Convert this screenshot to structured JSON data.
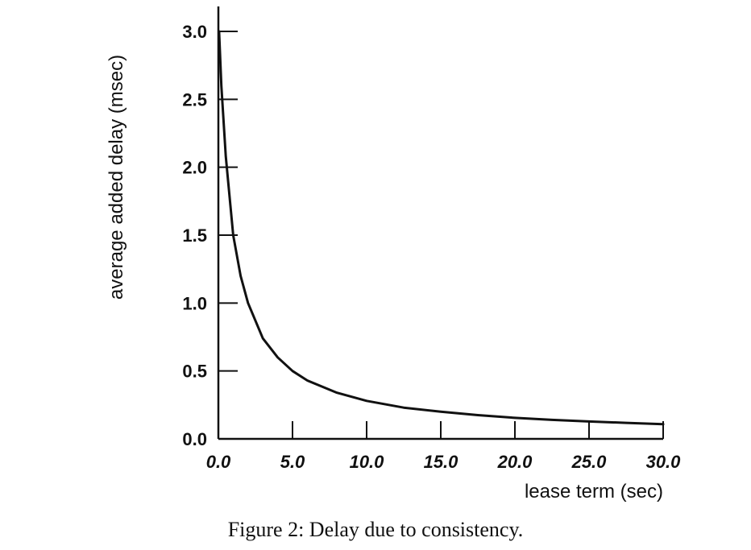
{
  "caption": "Figure 2: Delay due to consistency.",
  "chart_data": {
    "type": "line",
    "xlabel": "lease term (sec)",
    "ylabel": "average added delay (msec)",
    "xlim": [
      0,
      30
    ],
    "ylim": [
      0,
      3.2
    ],
    "xticks": [
      0,
      5,
      10,
      15,
      20,
      25,
      30
    ],
    "xtick_labels": [
      "0.0",
      "5.0",
      "10.0",
      "15.0",
      "20.0",
      "25.0",
      "30.0"
    ],
    "yticks": [
      0,
      0.5,
      1.0,
      1.5,
      2.0,
      2.5,
      3.0
    ],
    "ytick_labels": [
      "0.0",
      "0.5",
      "1.0",
      "1.5",
      "2.0",
      "2.5",
      "3.0"
    ],
    "grid": false,
    "series": [
      {
        "color": "#111111",
        "x": [
          0.05,
          0.2,
          0.5,
          1.0,
          1.5,
          2.0,
          3.0,
          4.0,
          5.0,
          6.0,
          8.0,
          10.0,
          12.5,
          15.0,
          17.5,
          20.0,
          22.5,
          25.0,
          27.5,
          30.0
        ],
        "y": [
          3.0,
          2.6,
          2.08,
          1.5,
          1.2,
          1.0,
          0.74,
          0.6,
          0.5,
          0.43,
          0.34,
          0.28,
          0.23,
          0.2,
          0.175,
          0.155,
          0.14,
          0.128,
          0.118,
          0.108
        ]
      }
    ]
  }
}
